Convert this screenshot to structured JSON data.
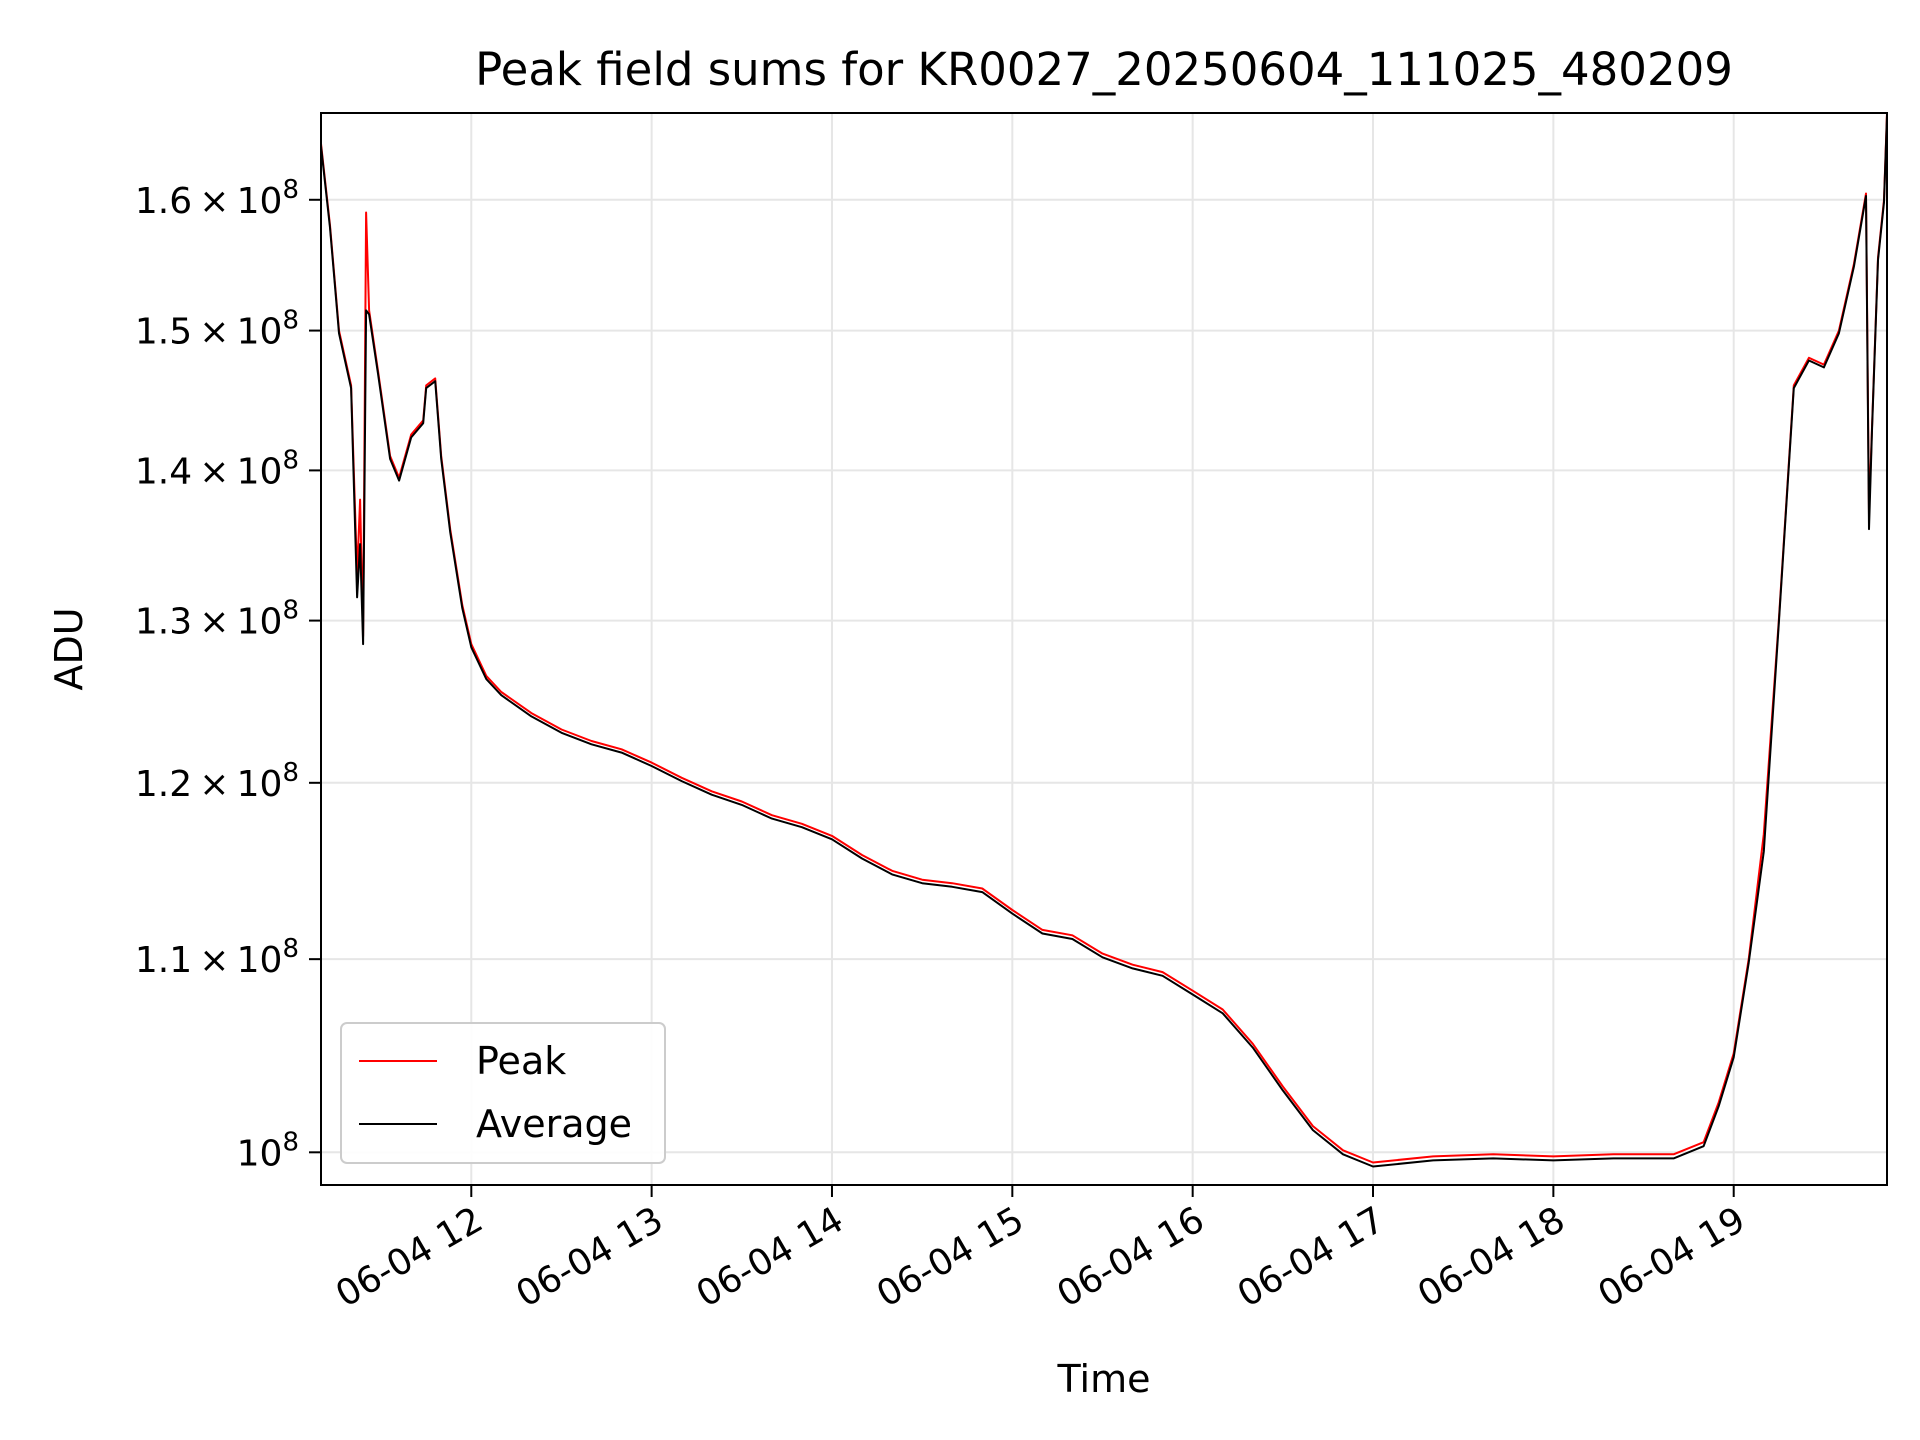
{
  "chart_data": {
    "type": "line",
    "title": "Peak field sums for KR0027_20250604_111025_480209",
    "xlabel": "Time",
    "ylabel": "ADU",
    "y_scale": "log",
    "ylim": [
      98400000,
      167000000
    ],
    "xlim": [
      "2025-06-04 11:10",
      "2025-06-04 19:51"
    ],
    "grid": true,
    "legend_position": "lower-left",
    "x_ticks": [
      {
        "value": "2025-06-04 12:00",
        "label": "06-04 12"
      },
      {
        "value": "2025-06-04 13:00",
        "label": "06-04 13"
      },
      {
        "value": "2025-06-04 14:00",
        "label": "06-04 14"
      },
      {
        "value": "2025-06-04 15:00",
        "label": "06-04 15"
      },
      {
        "value": "2025-06-04 16:00",
        "label": "06-04 16"
      },
      {
        "value": "2025-06-04 17:00",
        "label": "06-04 17"
      },
      {
        "value": "2025-06-04 18:00",
        "label": "06-04 18"
      },
      {
        "value": "2025-06-04 19:00",
        "label": "06-04 19"
      }
    ],
    "y_ticks": [
      {
        "value": 100000000,
        "mantissa": "",
        "base": "10",
        "exp": "8"
      },
      {
        "value": 110000000,
        "mantissa": "1.1",
        "base": "10",
        "exp": "8"
      },
      {
        "value": 120000000,
        "mantissa": "1.2",
        "base": "10",
        "exp": "8"
      },
      {
        "value": 130000000,
        "mantissa": "1.3",
        "base": "10",
        "exp": "8"
      },
      {
        "value": 140000000,
        "mantissa": "1.4",
        "base": "10",
        "exp": "8"
      },
      {
        "value": 150000000,
        "mantissa": "1.5",
        "base": "10",
        "exp": "8"
      },
      {
        "value": 160000000,
        "mantissa": "1.6",
        "base": "10",
        "exp": "8"
      }
    ],
    "series": [
      {
        "name": "Peak",
        "color": "#ff0000",
        "points": [
          [
            "2025-06-04 11:10",
            164500000
          ],
          [
            "2025-06-04 11:13",
            158000000
          ],
          [
            "2025-06-04 11:16",
            150000000
          ],
          [
            "2025-06-04 11:18",
            148000000
          ],
          [
            "2025-06-04 11:20",
            146000000
          ],
          [
            "2025-06-04 11:22",
            133000000
          ],
          [
            "2025-06-04 11:23",
            138000000
          ],
          [
            "2025-06-04 11:24",
            129000000
          ],
          [
            "2025-06-04 11:25",
            159000000
          ],
          [
            "2025-06-04 11:26",
            151500000
          ],
          [
            "2025-06-04 11:29",
            147000000
          ],
          [
            "2025-06-04 11:33",
            141000000
          ],
          [
            "2025-06-04 11:36",
            139500000
          ],
          [
            "2025-06-04 11:40",
            142500000
          ],
          [
            "2025-06-04 11:44",
            143500000
          ],
          [
            "2025-06-04 11:45",
            146000000
          ],
          [
            "2025-06-04 11:48",
            146500000
          ],
          [
            "2025-06-04 11:50",
            141000000
          ],
          [
            "2025-06-04 11:53",
            136000000
          ],
          [
            "2025-06-04 11:57",
            131000000
          ],
          [
            "2025-06-04 12:00",
            128500000
          ],
          [
            "2025-06-04 12:05",
            126500000
          ],
          [
            "2025-06-04 12:10",
            125500000
          ],
          [
            "2025-06-04 12:20",
            124200000
          ],
          [
            "2025-06-04 12:30",
            123200000
          ],
          [
            "2025-06-04 12:40",
            122500000
          ],
          [
            "2025-06-04 12:50",
            122000000
          ],
          [
            "2025-06-04 13:00",
            121200000
          ],
          [
            "2025-06-04 13:10",
            120300000
          ],
          [
            "2025-06-04 13:20",
            119500000
          ],
          [
            "2025-06-04 13:30",
            118900000
          ],
          [
            "2025-06-04 13:40",
            118100000
          ],
          [
            "2025-06-04 13:50",
            117600000
          ],
          [
            "2025-06-04 14:00",
            116900000
          ],
          [
            "2025-06-04 14:10",
            115800000
          ],
          [
            "2025-06-04 14:20",
            114900000
          ],
          [
            "2025-06-04 14:30",
            114400000
          ],
          [
            "2025-06-04 14:40",
            114200000
          ],
          [
            "2025-06-04 14:50",
            113900000
          ],
          [
            "2025-06-04 15:00",
            112700000
          ],
          [
            "2025-06-04 15:10",
            111600000
          ],
          [
            "2025-06-04 15:20",
            111300000
          ],
          [
            "2025-06-04 15:30",
            110300000
          ],
          [
            "2025-06-04 15:40",
            109700000
          ],
          [
            "2025-06-04 15:50",
            109300000
          ],
          [
            "2025-06-04 16:00",
            108300000
          ],
          [
            "2025-06-04 16:10",
            107300000
          ],
          [
            "2025-06-04 16:20",
            105500000
          ],
          [
            "2025-06-04 16:30",
            103300000
          ],
          [
            "2025-06-04 16:40",
            101300000
          ],
          [
            "2025-06-04 16:50",
            100100000
          ],
          [
            "2025-06-04 17:00",
            99500000
          ],
          [
            "2025-06-04 17:20",
            99800000
          ],
          [
            "2025-06-04 17:40",
            99900000
          ],
          [
            "2025-06-04 18:00",
            99800000
          ],
          [
            "2025-06-04 18:20",
            99900000
          ],
          [
            "2025-06-04 18:40",
            99900000
          ],
          [
            "2025-06-04 18:50",
            100500000
          ],
          [
            "2025-06-04 18:55",
            102500000
          ],
          [
            "2025-06-04 19:00",
            105000000
          ],
          [
            "2025-06-04 19:05",
            110000000
          ],
          [
            "2025-06-04 19:10",
            117000000
          ],
          [
            "2025-06-04 19:15",
            130000000
          ],
          [
            "2025-06-04 19:20",
            146000000
          ],
          [
            "2025-06-04 19:25",
            148000000
          ],
          [
            "2025-06-04 19:30",
            147500000
          ],
          [
            "2025-06-04 19:35",
            150000000
          ],
          [
            "2025-06-04 19:40",
            155000000
          ],
          [
            "2025-06-04 19:44",
            160500000
          ],
          [
            "2025-06-04 19:45",
            137000000
          ],
          [
            "2025-06-04 19:46",
            143000000
          ],
          [
            "2025-06-04 19:48",
            155500000
          ],
          [
            "2025-06-04 19:50",
            160000000
          ],
          [
            "2025-06-04 19:51",
            167000000
          ]
        ]
      },
      {
        "name": "Average",
        "color": "#000000",
        "points": [
          [
            "2025-06-04 11:10",
            164300000
          ],
          [
            "2025-06-04 11:13",
            157800000
          ],
          [
            "2025-06-04 11:16",
            149800000
          ],
          [
            "2025-06-04 11:18",
            147800000
          ],
          [
            "2025-06-04 11:20",
            145800000
          ],
          [
            "2025-06-04 11:22",
            131500000
          ],
          [
            "2025-06-04 11:23",
            135000000
          ],
          [
            "2025-06-04 11:24",
            128500000
          ],
          [
            "2025-06-04 11:25",
            151500000
          ],
          [
            "2025-06-04 11:26",
            151200000
          ],
          [
            "2025-06-04 11:29",
            146800000
          ],
          [
            "2025-06-04 11:33",
            140800000
          ],
          [
            "2025-06-04 11:36",
            139300000
          ],
          [
            "2025-06-04 11:40",
            142300000
          ],
          [
            "2025-06-04 11:44",
            143300000
          ],
          [
            "2025-06-04 11:45",
            145800000
          ],
          [
            "2025-06-04 11:48",
            146300000
          ],
          [
            "2025-06-04 11:50",
            140800000
          ],
          [
            "2025-06-04 11:53",
            135800000
          ],
          [
            "2025-06-04 11:57",
            130800000
          ],
          [
            "2025-06-04 12:00",
            128300000
          ],
          [
            "2025-06-04 12:05",
            126300000
          ],
          [
            "2025-06-04 12:10",
            125300000
          ],
          [
            "2025-06-04 12:20",
            124000000
          ],
          [
            "2025-06-04 12:30",
            123000000
          ],
          [
            "2025-06-04 12:40",
            122300000
          ],
          [
            "2025-06-04 12:50",
            121800000
          ],
          [
            "2025-06-04 13:00",
            121000000
          ],
          [
            "2025-06-04 13:10",
            120100000
          ],
          [
            "2025-06-04 13:20",
            119300000
          ],
          [
            "2025-06-04 13:30",
            118700000
          ],
          [
            "2025-06-04 13:40",
            117900000
          ],
          [
            "2025-06-04 13:50",
            117400000
          ],
          [
            "2025-06-04 14:00",
            116700000
          ],
          [
            "2025-06-04 14:10",
            115600000
          ],
          [
            "2025-06-04 14:20",
            114700000
          ],
          [
            "2025-06-04 14:30",
            114200000
          ],
          [
            "2025-06-04 14:40",
            114000000
          ],
          [
            "2025-06-04 14:50",
            113700000
          ],
          [
            "2025-06-04 15:00",
            112500000
          ],
          [
            "2025-06-04 15:10",
            111400000
          ],
          [
            "2025-06-04 15:20",
            111100000
          ],
          [
            "2025-06-04 15:30",
            110100000
          ],
          [
            "2025-06-04 15:40",
            109500000
          ],
          [
            "2025-06-04 15:50",
            109100000
          ],
          [
            "2025-06-04 16:00",
            108100000
          ],
          [
            "2025-06-04 16:10",
            107100000
          ],
          [
            "2025-06-04 16:20",
            105300000
          ],
          [
            "2025-06-04 16:30",
            103100000
          ],
          [
            "2025-06-04 16:40",
            101100000
          ],
          [
            "2025-06-04 16:50",
            99900000
          ],
          [
            "2025-06-04 17:00",
            99300000
          ],
          [
            "2025-06-04 17:20",
            99600000
          ],
          [
            "2025-06-04 17:40",
            99700000
          ],
          [
            "2025-06-04 18:00",
            99600000
          ],
          [
            "2025-06-04 18:20",
            99700000
          ],
          [
            "2025-06-04 18:40",
            99700000
          ],
          [
            "2025-06-04 18:50",
            100300000
          ],
          [
            "2025-06-04 18:55",
            102300000
          ],
          [
            "2025-06-04 19:00",
            104800000
          ],
          [
            "2025-06-04 19:05",
            109800000
          ],
          [
            "2025-06-04 19:10",
            116000000
          ],
          [
            "2025-06-04 19:15",
            129800000
          ],
          [
            "2025-06-04 19:20",
            145800000
          ],
          [
            "2025-06-04 19:25",
            147800000
          ],
          [
            "2025-06-04 19:30",
            147300000
          ],
          [
            "2025-06-04 19:35",
            149800000
          ],
          [
            "2025-06-04 19:40",
            154800000
          ],
          [
            "2025-06-04 19:44",
            160300000
          ],
          [
            "2025-06-04 19:45",
            136000000
          ],
          [
            "2025-06-04 19:46",
            142800000
          ],
          [
            "2025-06-04 19:48",
            155300000
          ],
          [
            "2025-06-04 19:50",
            159800000
          ],
          [
            "2025-06-04 19:51",
            166800000
          ]
        ]
      }
    ]
  }
}
